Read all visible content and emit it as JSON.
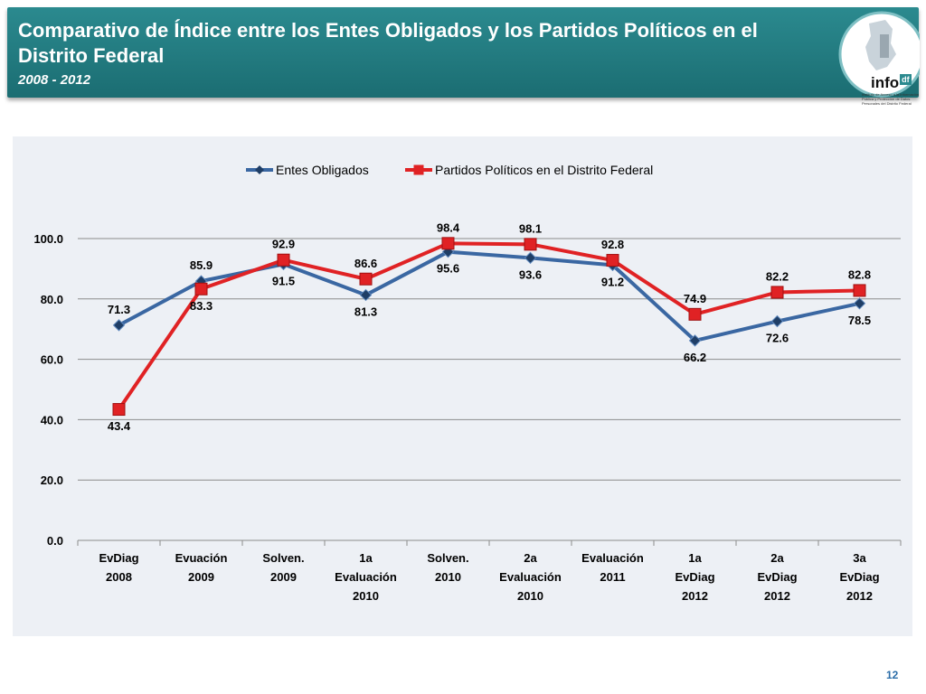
{
  "header": {
    "title": "Comparativo de Índice entre los Entes Obligados y los Partidos Políticos en el Distrito Federal",
    "subtitle": "2008 - 2012"
  },
  "logo": {
    "word": "info",
    "df": "df",
    "fine_print": "Instituto de Acceso a la Información Pública y Protección de Datos Personales del Distrito Federal"
  },
  "page_number": "12",
  "colors": {
    "header_bg": "#1f7a80",
    "series_entes": "#3a67a2",
    "series_partidos": "#e02224",
    "panel_bg": "#edf0f5"
  },
  "chart_data": {
    "type": "line",
    "title": "",
    "xlabel": "",
    "ylabel": "",
    "ylim": [
      0,
      100
    ],
    "yticks": [
      "0.0",
      "20.0",
      "40.0",
      "60.0",
      "80.0",
      "100.0"
    ],
    "grid": true,
    "legend": "top",
    "categories": [
      [
        "EvDiag",
        "2008"
      ],
      [
        "Evuación",
        "2009"
      ],
      [
        "Solven.",
        "2009"
      ],
      [
        "1a",
        "Evaluación",
        "2010"
      ],
      [
        "Solven.",
        "2010"
      ],
      [
        "2a",
        "Evaluación",
        "2010"
      ],
      [
        "Evaluación",
        "2011"
      ],
      [
        "1a",
        "EvDiag",
        "2012"
      ],
      [
        "2a",
        "EvDiag",
        "2012"
      ],
      [
        "3a",
        "EvDiag",
        "2012"
      ]
    ],
    "series": [
      {
        "name": "Entes Obligados",
        "color": "#3a67a2",
        "marker": "diamond",
        "values": [
          71.3,
          85.9,
          91.5,
          81.3,
          95.6,
          93.6,
          91.2,
          66.2,
          72.6,
          78.5
        ],
        "labels": [
          "71.3",
          "85.9",
          "91.5",
          "81.3",
          "95.6",
          "93.6",
          "91.2",
          "66.2",
          "72.6",
          "78.5"
        ]
      },
      {
        "name": "Partidos Políticos en el Distrito Federal",
        "color": "#e02224",
        "marker": "square",
        "values": [
          43.4,
          83.3,
          92.9,
          86.6,
          98.4,
          98.1,
          92.8,
          74.9,
          82.2,
          82.8
        ],
        "labels": [
          "43.4",
          "83.3",
          "92.9",
          "86.6",
          "98.4",
          "98.1",
          "92.8",
          "74.9",
          "82.2",
          "82.8"
        ]
      }
    ]
  }
}
